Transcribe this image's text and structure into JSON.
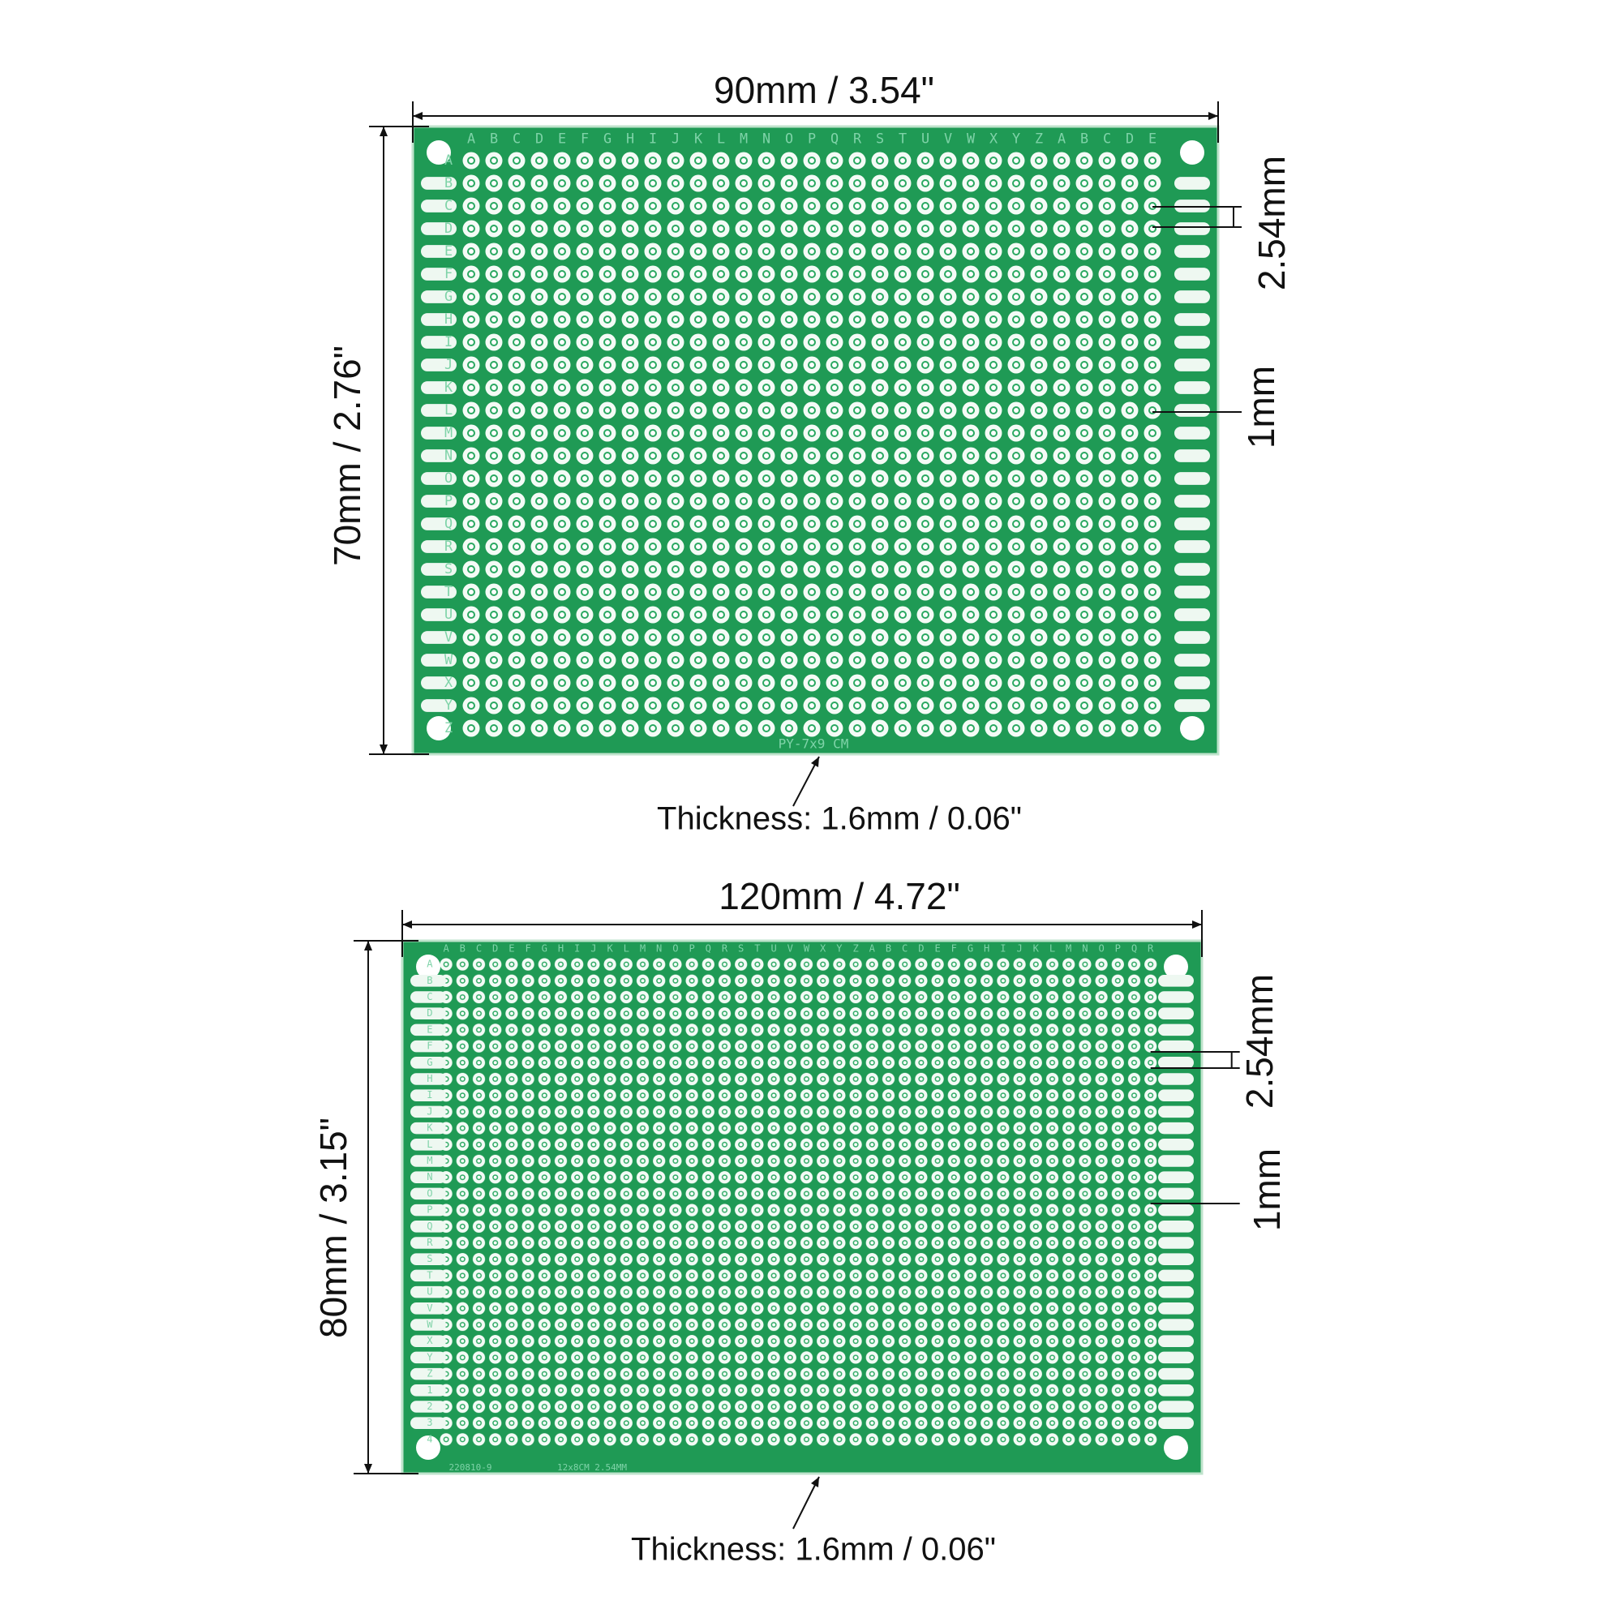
{
  "boards": [
    {
      "width_label": "90mm / 3.54\"",
      "height_label": "70mm / 2.76\"",
      "pitch_label": "2.54mm",
      "hole_label": "1mm",
      "thickness_label": "Thickness: 1.6mm / 0.06\"",
      "silkscreen": [
        "PY-7x9 CM"
      ],
      "columns": [
        "A",
        "B",
        "C",
        "D",
        "E",
        "F",
        "G",
        "H",
        "I",
        "J",
        "K",
        "L",
        "M",
        "N",
        "O",
        "P",
        "Q",
        "R",
        "S",
        "T",
        "U",
        "V",
        "W",
        "X",
        "Y",
        "Z",
        "A",
        "B",
        "C",
        "D",
        "E"
      ],
      "rows": [
        "A",
        "B",
        "C",
        "D",
        "E",
        "F",
        "G",
        "H",
        "I",
        "J",
        "K",
        "L",
        "M",
        "N",
        "O",
        "P",
        "Q",
        "R",
        "S",
        "T",
        "U",
        "V",
        "W",
        "X",
        "Y",
        "Z"
      ]
    },
    {
      "width_label": "120mm / 4.72\"",
      "height_label": "80mm / 3.15\"",
      "pitch_label": "2.54mm",
      "hole_label": "1mm",
      "thickness_label": "Thickness: 1.6mm / 0.06\"",
      "silkscreen": [
        "220810-9",
        "12x8CM 2.54MM"
      ],
      "columns": [
        "A",
        "B",
        "C",
        "D",
        "E",
        "F",
        "G",
        "H",
        "I",
        "J",
        "K",
        "L",
        "M",
        "N",
        "O",
        "P",
        "Q",
        "R",
        "S",
        "T",
        "U",
        "V",
        "W",
        "X",
        "Y",
        "Z",
        "A",
        "B",
        "C",
        "D",
        "E",
        "F",
        "G",
        "H",
        "I",
        "J",
        "K",
        "L",
        "M",
        "N",
        "O",
        "P",
        "Q",
        "R"
      ],
      "rows": [
        "A",
        "B",
        "C",
        "D",
        "E",
        "F",
        "G",
        "H",
        "I",
        "J",
        "K",
        "L",
        "M",
        "N",
        "O",
        "P",
        "Q",
        "R",
        "S",
        "T",
        "U",
        "V",
        "W",
        "X",
        "Y",
        "Z",
        "1",
        "2",
        "3",
        "4"
      ]
    }
  ]
}
